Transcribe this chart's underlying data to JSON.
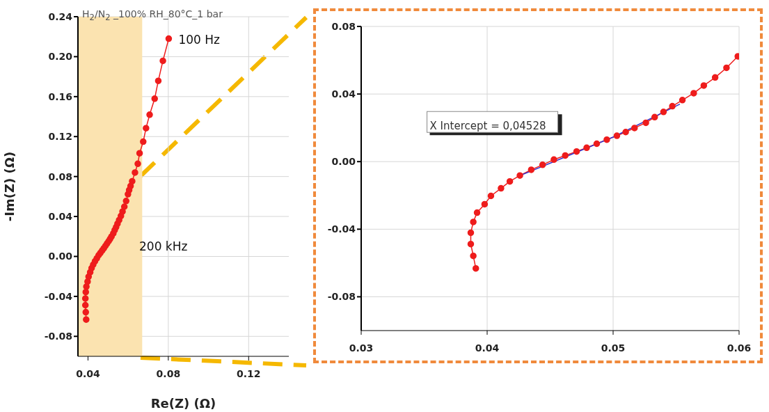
{
  "chart_data": [
    {
      "type": "line",
      "title": "H$_{2}$/N$_{2}$ _100% RH_80°C_1 bar",
      "xlabel": "Re(Z) (Ω)",
      "ylabel": "-Im(Z) (Ω)",
      "xlim": [
        0.035,
        0.14
      ],
      "ylim": [
        -0.1,
        0.24
      ],
      "xticks": [
        0.04,
        0.08,
        0.12
      ],
      "yticks": [
        {
          "value": -0.08,
          "label": "-0.08"
        },
        {
          "value": -0.04,
          "label": "-0.04"
        },
        {
          "value": 0,
          "label": "0.00"
        },
        {
          "value": 0.04,
          "label": "0.04"
        },
        {
          "value": 0.08,
          "label": "0.08"
        },
        {
          "value": 0.12,
          "label": "0.12"
        },
        {
          "value": 0.16,
          "label": "0.16"
        },
        {
          "value": 0.2,
          "label": "0.20"
        },
        {
          "value": 0.24,
          "label": "0.24"
        }
      ],
      "grid": true,
      "marker": "circle",
      "bands": [
        {
          "axis": "x",
          "from": 0.035,
          "to": 0.067,
          "color": "#fbe3b0"
        }
      ],
      "annotations": [
        {
          "text": "100 Hz",
          "x": 0.0802,
          "y": 0.218
        },
        "200 kHz"
      ],
      "series": [
        {
          "color": "#ee1c1c",
          "x": [
            0.0391,
            0.0389,
            0.0387,
            0.0387,
            0.0389,
            0.0392,
            0.0398,
            0.0403,
            0.0411,
            0.0418,
            0.0426,
            0.0435,
            0.0444,
            0.0453,
            0.0462,
            0.0471,
            0.0479,
            0.0487,
            0.0495,
            0.0503,
            0.051,
            0.0517,
            0.0526,
            0.0533,
            0.054,
            0.0547,
            0.0555,
            0.0564,
            0.0572,
            0.0581,
            0.059,
            0.0599,
            0.0605,
            0.0612,
            0.062,
            0.0634,
            0.0648,
            0.0657,
            0.0675,
            0.0689,
            0.0707,
            0.0732,
            0.075,
            0.0773,
            0.0802
          ],
          "values": [
            -0.0632,
            -0.0558,
            -0.0488,
            -0.0421,
            -0.0357,
            -0.0302,
            -0.0252,
            -0.0203,
            -0.0158,
            -0.0117,
            -0.0082,
            -0.0048,
            -0.0019,
            0.0012,
            0.0036,
            0.006,
            0.0082,
            0.0106,
            0.013,
            0.0153,
            0.0175,
            0.0199,
            0.023,
            0.0263,
            0.0294,
            0.0328,
            0.0364,
            0.0405,
            0.045,
            0.0498,
            0.0555,
            0.0623,
            0.0665,
            0.0705,
            0.0753,
            0.084,
            0.0928,
            0.1033,
            0.1149,
            0.1284,
            0.1419,
            0.1579,
            0.1758,
            0.1958,
            0.218
          ]
        }
      ]
    },
    {
      "type": "line",
      "xlim": [
        0.03,
        0.06
      ],
      "ylim": [
        -0.1,
        0.08
      ],
      "xticks": [
        0.03,
        0.04,
        0.05,
        0.06
      ],
      "yticks": [
        {
          "value": -0.08,
          "label": "-0.08"
        },
        {
          "value": -0.04,
          "label": "-0.04"
        },
        {
          "value": 0,
          "label": "0.00"
        },
        {
          "value": 0.04,
          "label": "0.04"
        },
        {
          "value": 0.08,
          "label": "0.08"
        }
      ],
      "grid": true,
      "annotations": [
        {
          "text": "X Intercept = 0,04528",
          "x": 0.04528,
          "y": 0
        }
      ],
      "series": [
        {
          "color": "#ee1c1c",
          "marker": "circle",
          "x": [
            0.0391,
            0.0389,
            0.0387,
            0.0387,
            0.0389,
            0.0392,
            0.0398,
            0.0403,
            0.0411,
            0.0418,
            0.0426,
            0.0435,
            0.0444,
            0.0453,
            0.0462,
            0.0471,
            0.0479,
            0.0487,
            0.0495,
            0.0503,
            0.051,
            0.0517,
            0.0526,
            0.0533,
            0.054,
            0.0547,
            0.0555,
            0.0564,
            0.0572,
            0.0581,
            0.059,
            0.0599
          ],
          "values": [
            -0.0632,
            -0.0558,
            -0.0488,
            -0.0421,
            -0.0357,
            -0.0302,
            -0.0252,
            -0.0203,
            -0.0158,
            -0.0117,
            -0.0082,
            -0.0048,
            -0.0019,
            0.0012,
            0.0036,
            0.006,
            0.0082,
            0.0106,
            0.013,
            0.0153,
            0.0175,
            0.0199,
            0.023,
            0.0263,
            0.0294,
            0.0328,
            0.0364,
            0.0405,
            0.045,
            0.0498,
            0.0555,
            0.0623
          ]
        },
        {
          "color": "#3333cc",
          "marker": "none",
          "x": [
            0.0427,
            0.0453,
            0.05,
            0.0553
          ],
          "values": [
            -0.008,
            0.0,
            0.0145,
            0.034
          ]
        }
      ]
    }
  ]
}
